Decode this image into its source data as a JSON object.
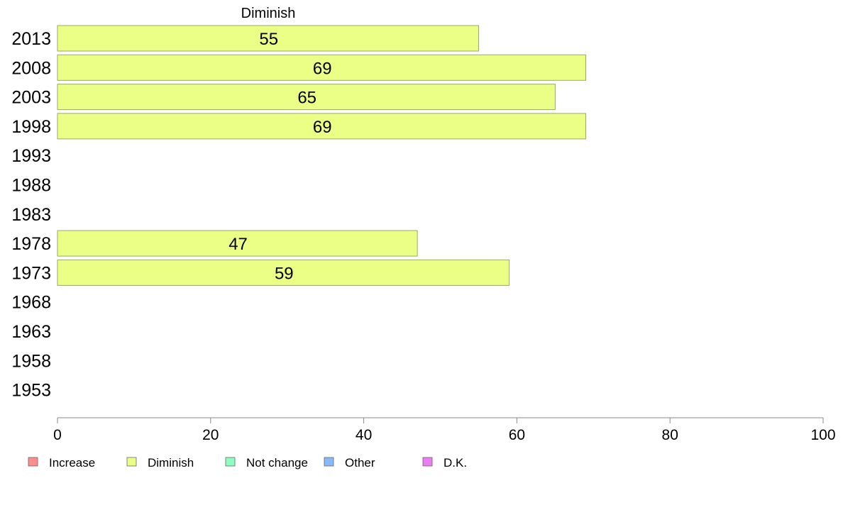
{
  "chart_data": {
    "type": "bar",
    "orientation": "horizontal",
    "title": "Diminish",
    "categories": [
      "2013",
      "2008",
      "2003",
      "1998",
      "1993",
      "1988",
      "1983",
      "1978",
      "1973",
      "1968",
      "1963",
      "1958",
      "1953"
    ],
    "series": [
      {
        "name": "Diminish",
        "color": "#ebff87",
        "values": [
          55,
          69,
          65,
          69,
          null,
          null,
          null,
          47,
          59,
          null,
          null,
          null,
          null
        ]
      }
    ],
    "xlim": [
      0,
      100
    ],
    "xticks": [
      0,
      20,
      40,
      60,
      80,
      100
    ],
    "grid": false,
    "legend": {
      "placement": "bottom-left",
      "entries": [
        {
          "label": "Increase",
          "color": "#ff8c8c"
        },
        {
          "label": "Diminish",
          "color": "#ebff87"
        },
        {
          "label": "Not change",
          "color": "#8cffbe"
        },
        {
          "label": "Other",
          "color": "#87b9ff"
        },
        {
          "label": "D.K.",
          "color": "#eb7cf5"
        }
      ]
    }
  }
}
